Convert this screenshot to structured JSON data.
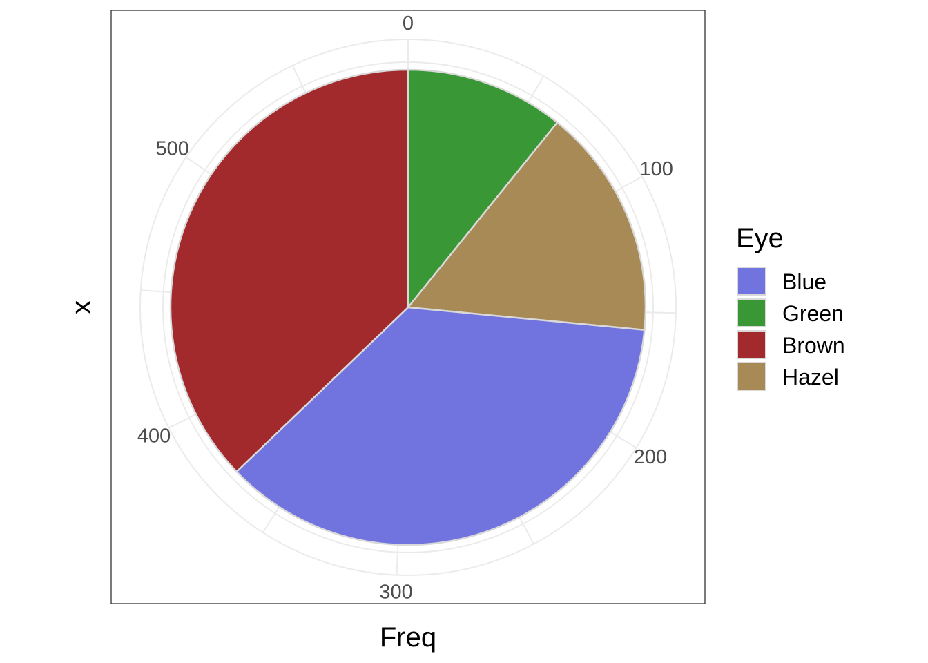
{
  "chart_data": {
    "type": "pie",
    "xlabel": "Freq",
    "ylabel": "x",
    "legend": {
      "title": "Eye",
      "position": "right"
    },
    "radial_axis": {
      "range": [
        0,
        592
      ],
      "ticks": [
        0,
        100,
        200,
        300,
        400,
        500
      ]
    },
    "grid": true,
    "slices": [
      {
        "label": "Green",
        "value": 64,
        "color": "#3a9735"
      },
      {
        "label": "Hazel",
        "value": 93,
        "color": "#a78a56"
      },
      {
        "label": "Blue",
        "value": 215,
        "color": "#7173de"
      },
      {
        "label": "Brown",
        "value": 220,
        "color": "#a2292c"
      }
    ],
    "legend_order": [
      "Blue",
      "Green",
      "Brown",
      "Hazel"
    ]
  },
  "colors": {
    "panel_border": "#333333",
    "grid": "#ebebeb",
    "slice_border": "#d9d9d9"
  }
}
